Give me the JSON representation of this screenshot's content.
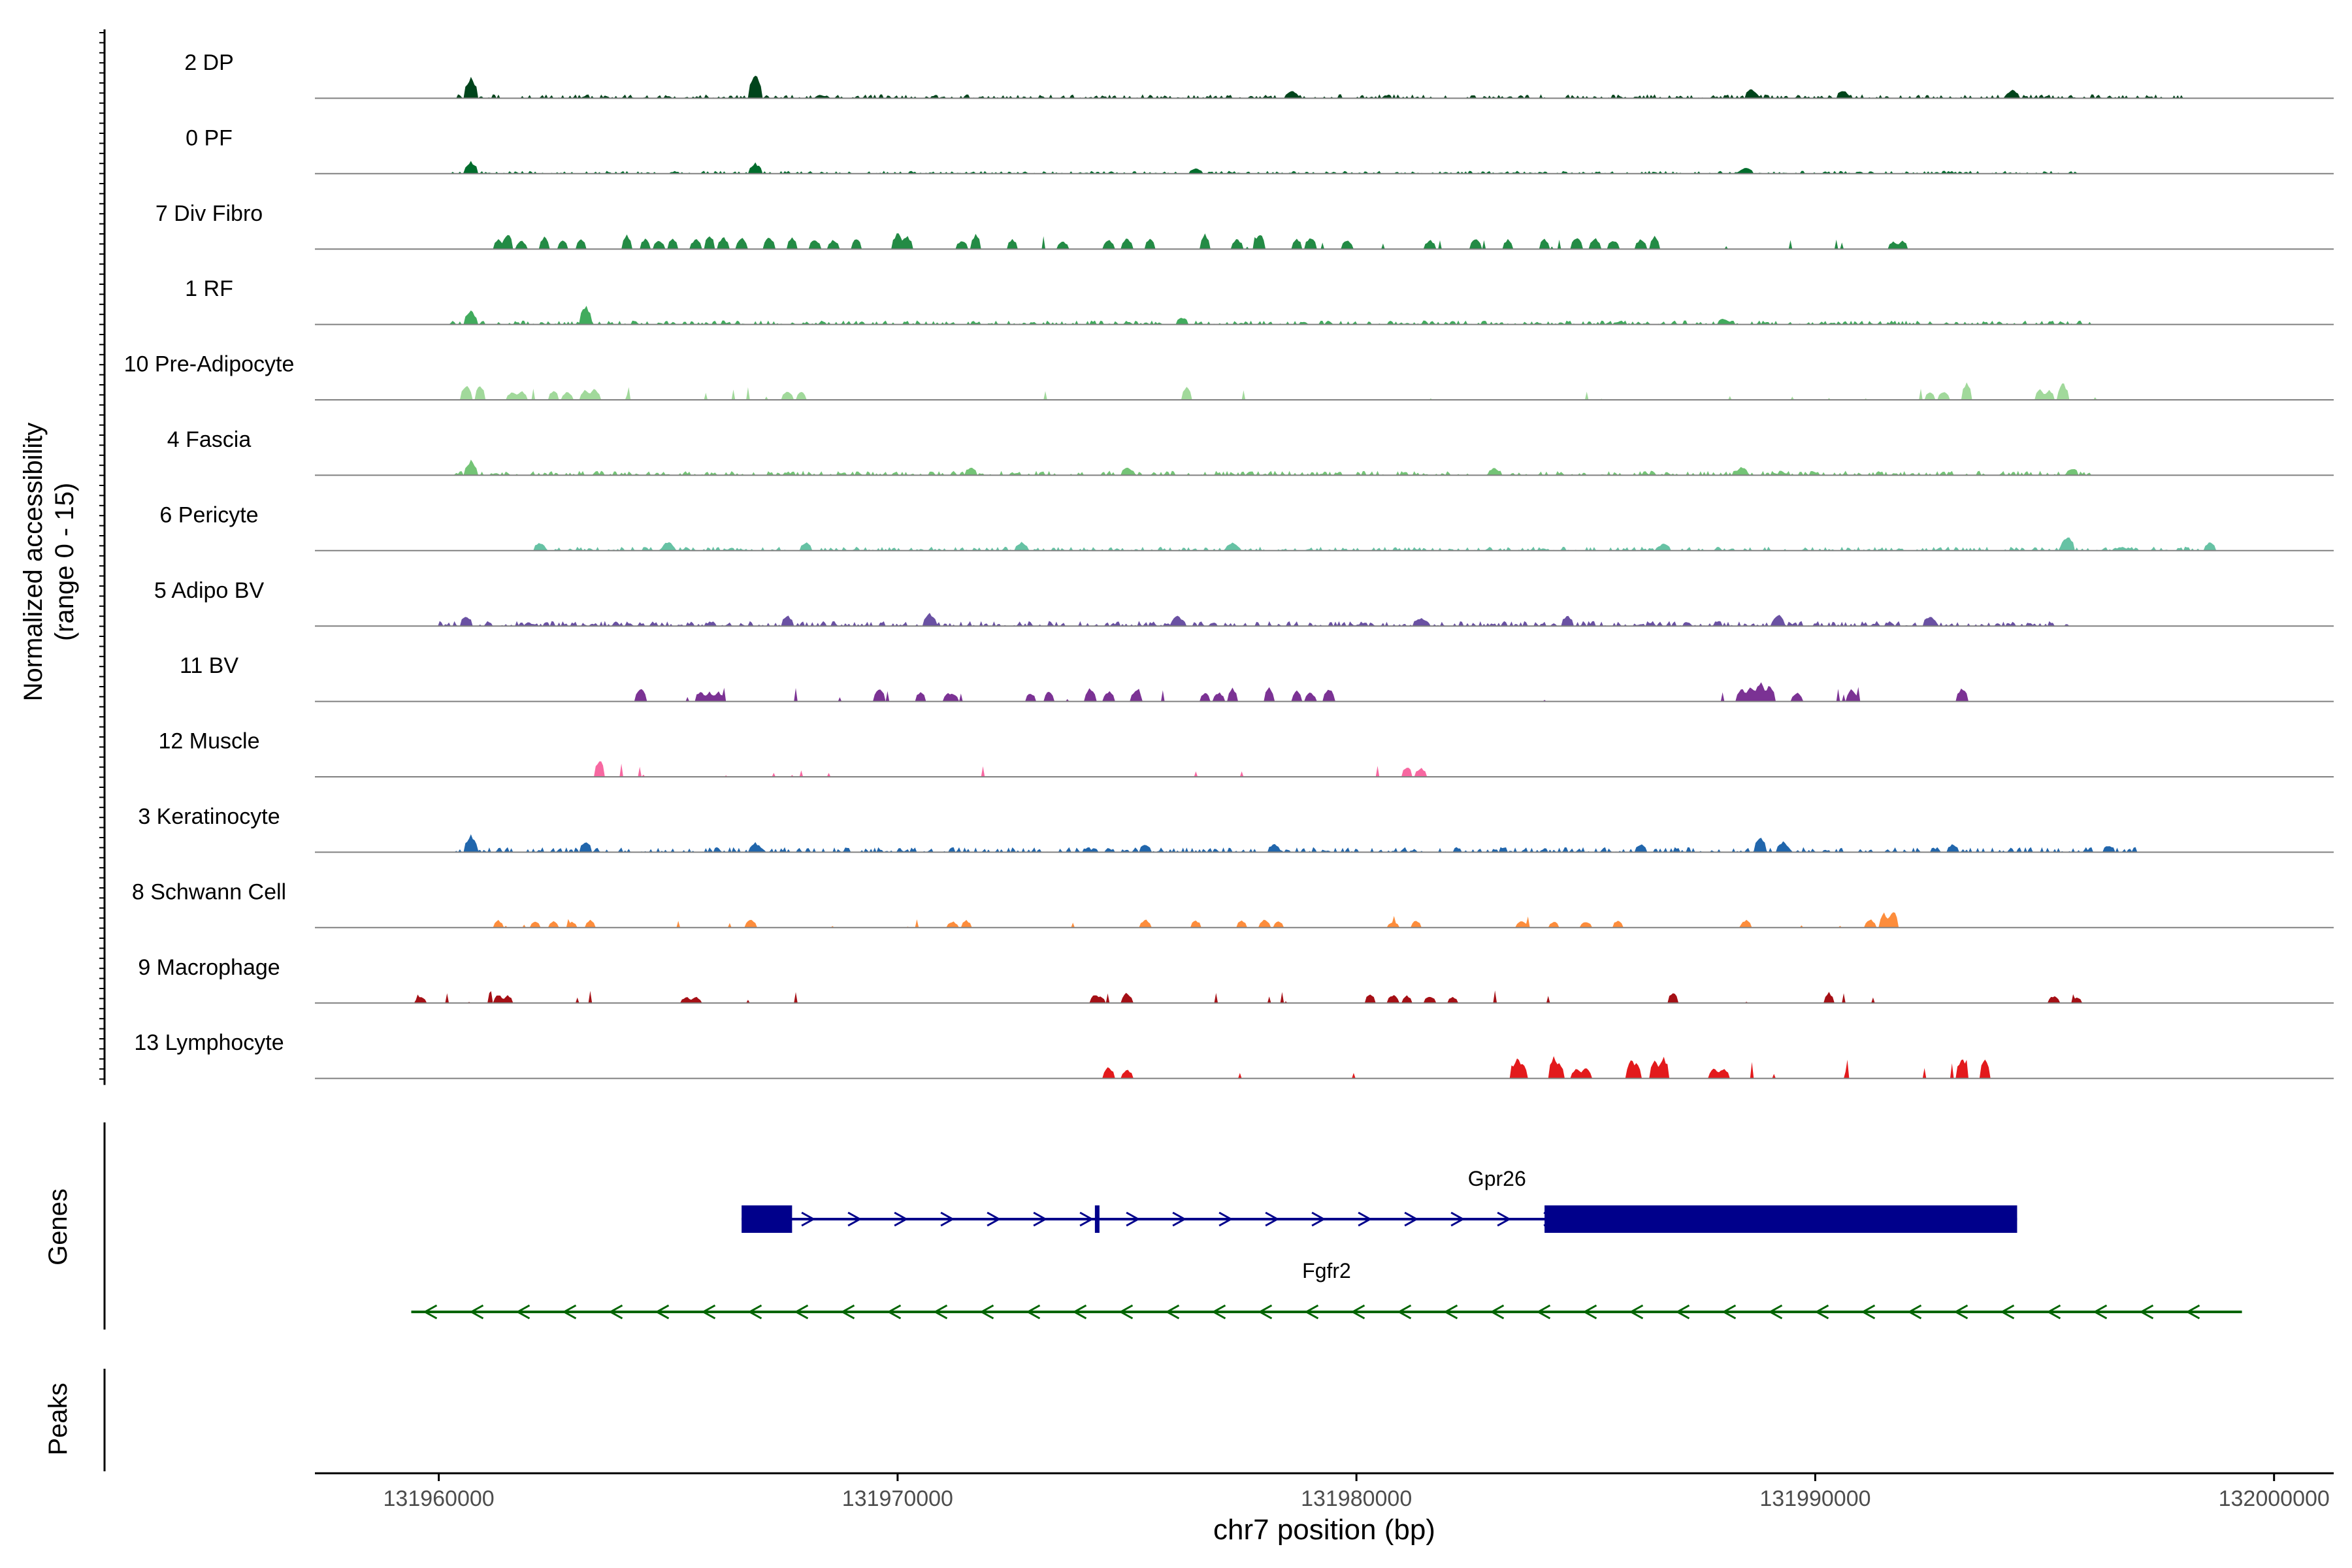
{
  "chart_data": {
    "type": "area",
    "title": "",
    "xlabel": "chr7 position (bp)",
    "ylabel_line1": "Normalized accessibility",
    "ylabel_line2": "(range 0 - 15)",
    "ylim": [
      0,
      15
    ],
    "xlim": [
      131957300,
      132001300
    ],
    "xticks": [
      131960000,
      131970000,
      131980000,
      131990000,
      132000000
    ],
    "xtick_labels": [
      "131960000",
      "131970000",
      "131980000",
      "131990000",
      "132000000"
    ],
    "tracks": [
      {
        "name": "2 DP",
        "color": "#00441b",
        "style": "dense",
        "height": 0.35,
        "range": [
          131960400,
          131998000
        ],
        "peaks": [
          [
            131960700,
            2.0
          ],
          [
            131966900,
            2.3
          ],
          [
            131988600,
            0.9
          ],
          [
            131990600,
            0.8
          ],
          [
            131978600,
            0.7
          ],
          [
            131994300,
            0.8
          ]
        ]
      },
      {
        "name": "0 PF",
        "color": "#006d2c",
        "style": "dense",
        "height": 0.25,
        "range": [
          131960300,
          131995700
        ],
        "peaks": [
          [
            131960700,
            1.2
          ],
          [
            131966900,
            1.0
          ],
          [
            131976500,
            0.5
          ],
          [
            131988500,
            0.6
          ]
        ]
      },
      {
        "name": "7 Div Fibro",
        "color": "#238b45",
        "style": "sparse",
        "height": 1.5,
        "range": [
          131961200,
          131992000
        ],
        "peaks": [
          [
            131961300,
            1.0
          ],
          [
            131961500,
            1.5
          ],
          [
            131961800,
            0.8
          ],
          [
            131962300,
            1.2
          ],
          [
            131962700,
            0.9
          ],
          [
            131963100,
            1.0
          ],
          [
            131964100,
            1.3
          ],
          [
            131964500,
            1.0
          ],
          [
            131964800,
            0.9
          ],
          [
            131965100,
            1.1
          ],
          [
            131965600,
            1.0
          ],
          [
            131965900,
            1.4
          ],
          [
            131966200,
            1.2
          ],
          [
            131966600,
            1.1
          ],
          [
            131967200,
            1.2
          ],
          [
            131967700,
            1.1
          ],
          [
            131968200,
            1.0
          ],
          [
            131968600,
            0.9
          ],
          [
            131969100,
            1.0
          ],
          [
            131970000,
            1.6
          ],
          [
            131970200,
            1.3
          ],
          [
            131971400,
            0.9
          ],
          [
            131971700,
            1.4
          ],
          [
            131972500,
            1.0
          ],
          [
            131973600,
            0.8
          ],
          [
            131974600,
            0.9
          ],
          [
            131975000,
            1.1
          ],
          [
            131975500,
            1.0
          ],
          [
            131976700,
            1.4
          ],
          [
            131977400,
            1.0
          ],
          [
            131977900,
            1.5
          ],
          [
            131978700,
            1.0
          ],
          [
            131979000,
            1.2
          ],
          [
            131979800,
            0.9
          ],
          [
            131981600,
            0.9
          ],
          [
            131982600,
            1.1
          ],
          [
            131983300,
            0.9
          ],
          [
            131984100,
            1.0
          ],
          [
            131984800,
            1.2
          ],
          [
            131985200,
            1.1
          ],
          [
            131985600,
            0.9
          ],
          [
            131986200,
            1.0
          ],
          [
            131986500,
            1.2
          ],
          [
            131991700,
            0.7
          ],
          [
            131991900,
            0.8
          ]
        ]
      },
      {
        "name": "1 RF",
        "color": "#41ab5d",
        "style": "dense",
        "height": 0.35,
        "range": [
          131960200,
          131996000
        ],
        "peaks": [
          [
            131960700,
            1.3
          ],
          [
            131963200,
            1.8
          ],
          [
            131976200,
            0.7
          ],
          [
            131988000,
            0.6
          ]
        ]
      },
      {
        "name": "10 Pre-Adipocyte",
        "color": "#a1d99b",
        "style": "sparse",
        "height": 1.5,
        "range": [
          131960500,
          131997000
        ],
        "peaks": [
          [
            131960600,
            1.4
          ],
          [
            131960900,
            1.5
          ],
          [
            131961600,
            0.8
          ],
          [
            131961800,
            0.9
          ],
          [
            131962500,
            0.9
          ],
          [
            131962800,
            0.8
          ],
          [
            131963200,
            1.0
          ],
          [
            131963400,
            1.1
          ],
          [
            131967600,
            0.9
          ],
          [
            131967900,
            0.8
          ],
          [
            131976300,
            1.3
          ],
          [
            131992500,
            0.8
          ],
          [
            131992800,
            0.8
          ],
          [
            131993300,
            1.6
          ],
          [
            131994900,
            1.0
          ],
          [
            131995100,
            0.9
          ],
          [
            131995400,
            1.6
          ]
        ]
      },
      {
        "name": "4 Fascia",
        "color": "#74c476",
        "style": "dense",
        "height": 0.4,
        "range": [
          131960300,
          131996000
        ],
        "peaks": [
          [
            131960700,
            1.4
          ],
          [
            131971600,
            0.8
          ],
          [
            131975000,
            0.8
          ],
          [
            131983000,
            0.7
          ],
          [
            131988400,
            0.8
          ],
          [
            131995600,
            0.7
          ]
        ]
      },
      {
        "name": "6 Pericyte",
        "color": "#66c2a4",
        "style": "dense",
        "height": 0.35,
        "range": [
          131962000,
          131998700
        ],
        "peaks": [
          [
            131962200,
            0.8
          ],
          [
            131965000,
            0.9
          ],
          [
            131968000,
            0.8
          ],
          [
            131972700,
            0.8
          ],
          [
            131977300,
            0.8
          ],
          [
            131986700,
            0.7
          ],
          [
            131995500,
            1.4
          ],
          [
            131998600,
            0.8
          ]
        ]
      },
      {
        "name": "5 Adipo BV",
        "color": "#6a51a3",
        "style": "dense",
        "height": 0.45,
        "range": [
          131960000,
          131995500
        ],
        "peaks": [
          [
            131960600,
            1.0
          ],
          [
            131967600,
            1.0
          ],
          [
            131970700,
            1.2
          ],
          [
            131976100,
            1.0
          ],
          [
            131981400,
            0.8
          ],
          [
            131984600,
            1.0
          ],
          [
            131989200,
            1.1
          ],
          [
            131992500,
            1.0
          ]
        ]
      },
      {
        "name": "11 BV",
        "color": "#7b3294",
        "style": "sparse",
        "height": 1.6,
        "range": [
          131964300,
          131993500
        ],
        "peaks": [
          [
            131964400,
            1.3
          ],
          [
            131965700,
            1.0
          ],
          [
            131965900,
            0.9
          ],
          [
            131966100,
            0.9
          ],
          [
            131969600,
            1.3
          ],
          [
            131970500,
            0.9
          ],
          [
            131971100,
            0.8
          ],
          [
            131971200,
            0.8
          ],
          [
            131972900,
            0.8
          ],
          [
            131973300,
            1.0
          ],
          [
            131974200,
            1.3
          ],
          [
            131974600,
            1.0
          ],
          [
            131975200,
            1.2
          ],
          [
            131976700,
            0.9
          ],
          [
            131977000,
            0.9
          ],
          [
            131977300,
            1.3
          ],
          [
            131978100,
            1.3
          ],
          [
            131978700,
            1.0
          ],
          [
            131979000,
            0.9
          ],
          [
            131979400,
            1.3
          ],
          [
            131988400,
            1.3
          ],
          [
            131988600,
            1.5
          ],
          [
            131988800,
            1.9
          ],
          [
            131989000,
            1.5
          ],
          [
            131989600,
            0.9
          ],
          [
            131990800,
            1.2
          ],
          [
            131993200,
            1.3
          ]
        ]
      },
      {
        "name": "12 Muscle",
        "color": "#f768a1",
        "style": "sparse",
        "height": 1.5,
        "range": [
          131963400,
          131981600
        ],
        "peaks": [
          [
            131963500,
            1.7
          ],
          [
            131981100,
            1.0
          ],
          [
            131981400,
            0.9
          ]
        ]
      },
      {
        "name": "3 Keratinocyte",
        "color": "#2166ac",
        "style": "dense",
        "height": 0.45,
        "range": [
          131960300,
          131997000
        ],
        "peaks": [
          [
            131960700,
            1.6
          ],
          [
            131963200,
            1.0
          ],
          [
            131966900,
            0.9
          ],
          [
            131975400,
            0.8
          ],
          [
            131978200,
            0.8
          ],
          [
            131986200,
            0.8
          ],
          [
            131988800,
            1.5
          ],
          [
            131989300,
            1.0
          ],
          [
            131993000,
            0.8
          ],
          [
            131996400,
            0.7
          ]
        ]
      },
      {
        "name": "8 Schwann Cell",
        "color": "#fd8d3c",
        "style": "sparse",
        "height": 1.3,
        "range": [
          131961300,
          131992000
        ],
        "peaks": [
          [
            131961300,
            0.7
          ],
          [
            131962100,
            0.6
          ],
          [
            131962500,
            0.6
          ],
          [
            131962900,
            0.6
          ],
          [
            131963300,
            0.7
          ],
          [
            131966800,
            0.8
          ],
          [
            131971200,
            0.6
          ],
          [
            131971500,
            0.7
          ],
          [
            131975400,
            0.8
          ],
          [
            131976500,
            0.7
          ],
          [
            131977500,
            0.7
          ],
          [
            131978000,
            0.8
          ],
          [
            131978300,
            0.6
          ],
          [
            131980800,
            0.6
          ],
          [
            131981300,
            0.7
          ],
          [
            131983600,
            0.7
          ],
          [
            131984300,
            0.6
          ],
          [
            131985000,
            0.6
          ],
          [
            131985700,
            0.7
          ],
          [
            131988500,
            0.8
          ],
          [
            131991200,
            0.8
          ],
          [
            131991500,
            1.4
          ],
          [
            131991700,
            1.6
          ]
        ]
      },
      {
        "name": "9 Macrophage",
        "color": "#a50f15",
        "style": "sparse",
        "height": 1.6,
        "range": [
          131959500,
          131996000
        ],
        "peaks": [
          [
            131959600,
            0.6
          ],
          [
            131961300,
            0.8
          ],
          [
            131961500,
            0.7
          ],
          [
            131965400,
            0.6
          ],
          [
            131965600,
            0.6
          ],
          [
            131974300,
            0.8
          ],
          [
            131974400,
            0.7
          ],
          [
            131975000,
            1.0
          ],
          [
            131980300,
            0.9
          ],
          [
            131980800,
            0.8
          ],
          [
            131981100,
            0.7
          ],
          [
            131981600,
            0.7
          ],
          [
            131982100,
            0.6
          ],
          [
            131986900,
            1.0
          ],
          [
            131990300,
            1.0
          ],
          [
            131995200,
            0.7
          ],
          [
            131995700,
            0.6
          ]
        ]
      },
      {
        "name": "13 Lymphocyte",
        "color": "#e31a1c",
        "style": "sparse",
        "height": 2.2,
        "range": [
          131974500,
          131994000
        ],
        "peaks": [
          [
            131974600,
            1.1
          ],
          [
            131975000,
            0.9
          ],
          [
            131983500,
            2.0
          ],
          [
            131983600,
            1.6
          ],
          [
            131984300,
            2.0
          ],
          [
            131984400,
            1.5
          ],
          [
            131984800,
            1.0
          ],
          [
            131985000,
            1.0
          ],
          [
            131986000,
            1.8
          ],
          [
            131986100,
            1.4
          ],
          [
            131986500,
            1.7
          ],
          [
            131986700,
            2.0
          ],
          [
            131987800,
            1.0
          ],
          [
            131988000,
            1.0
          ],
          [
            131993200,
            2.0
          ],
          [
            131993700,
            1.8
          ]
        ]
      }
    ],
    "genes_panel_label": "Genes",
    "peaks_panel_label": "Peaks",
    "genes": [
      {
        "name": "Gpr26",
        "strand": "+",
        "color": "#00008b",
        "start": 131966600,
        "end": 131994400,
        "exons": [
          [
            131966600,
            131967700
          ],
          [
            131974300,
            131974400
          ],
          [
            131984100,
            131994400
          ]
        ]
      },
      {
        "name": "Fgfr2",
        "strand": "-",
        "color": "#006400",
        "start": 131959400,
        "end": 131999300,
        "exons": []
      }
    ]
  }
}
